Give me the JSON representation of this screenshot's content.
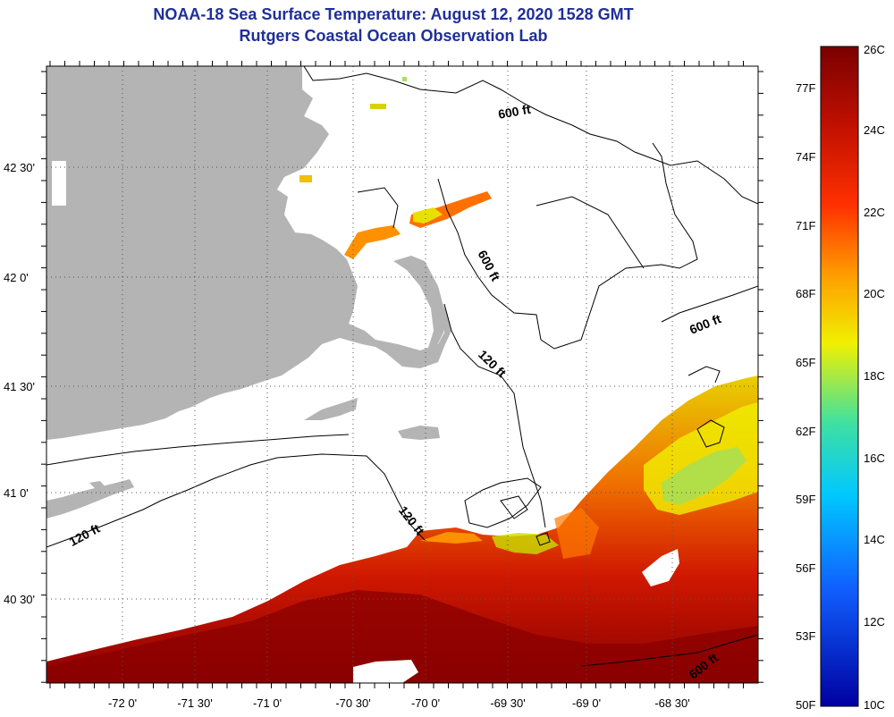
{
  "title": {
    "line1": "NOAA-18 Sea Surface Temperature:  August 12, 2020 1528 GMT",
    "line2": "Rutgers Coastal Ocean Observation Lab"
  },
  "map": {
    "x_ticks": [
      {
        "label": "-72 0'"
      },
      {
        "label": "-71 30'"
      },
      {
        "label": "-71 0'"
      },
      {
        "label": "-70 30'"
      },
      {
        "label": "-70 0'"
      },
      {
        "label": "-69 30'"
      },
      {
        "label": "-69 0'"
      },
      {
        "label": "-68 30'"
      }
    ],
    "y_ticks": [
      {
        "label": "42 30'"
      },
      {
        "label": "42 0'"
      },
      {
        "label": "41 30'"
      },
      {
        "label": "41 0'"
      },
      {
        "label": "40 30'"
      }
    ],
    "contour_labels": [
      "600 ft",
      "600 ft",
      "600 ft",
      "120 ft",
      "120 ft",
      "120 ft",
      "600 ft"
    ],
    "colors": {
      "land": "#b4b4b4",
      "ocean_no_data": "#ffffff"
    }
  },
  "colorbar": {
    "fahrenheit": [
      "77F",
      "74F",
      "71F",
      "68F",
      "65F",
      "62F",
      "59F",
      "56F",
      "53F",
      "50F"
    ],
    "celsius": [
      "26C",
      "24C",
      "22C",
      "20C",
      "18C",
      "16C",
      "14C",
      "12C",
      "10C"
    ],
    "colors": [
      "#7a0000",
      "#c01000",
      "#ff3000",
      "#ffa000",
      "#f0f000",
      "#40e0a0",
      "#00c8ff",
      "#1060ff",
      "#0000a0"
    ]
  }
}
